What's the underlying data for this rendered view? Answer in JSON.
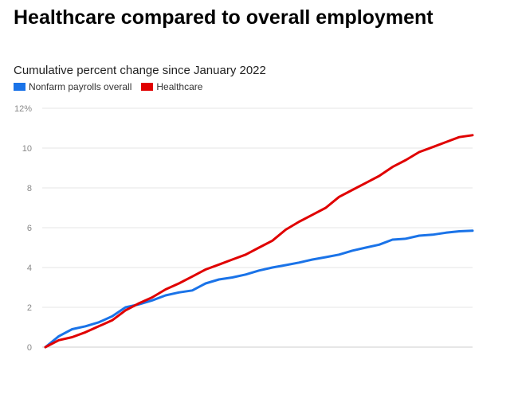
{
  "chart_data": {
    "type": "line",
    "title": "Healthcare compared to overall employment",
    "subtitle": "Cumulative percent change since January 2022",
    "ylim": [
      0,
      12
    ],
    "yticks": [
      "0",
      "2",
      "4",
      "6",
      "8",
      "10",
      "12%"
    ],
    "ytick_values": [
      0,
      2,
      4,
      6,
      8,
      10,
      12
    ],
    "grid": true,
    "legend_position": "top-left",
    "x": [
      0,
      1,
      2,
      3,
      4,
      5,
      6,
      7,
      8,
      9,
      10,
      11,
      12,
      13,
      14,
      15,
      16,
      17,
      18,
      19,
      20,
      21,
      22,
      23,
      24,
      25,
      26,
      27,
      28,
      29,
      30,
      31,
      32
    ],
    "series": [
      {
        "name": "Nonfarm payrolls overall",
        "color": "#1a73e8",
        "values": [
          0,
          0.55,
          0.9,
          1.05,
          1.25,
          1.55,
          2.0,
          2.15,
          2.35,
          2.6,
          2.75,
          2.85,
          3.2,
          3.4,
          3.5,
          3.65,
          3.85,
          4.0,
          4.12,
          4.25,
          4.4,
          4.52,
          4.65,
          4.85,
          5.0,
          5.15,
          5.4,
          5.45,
          5.6,
          5.65,
          5.75,
          5.82,
          5.85
        ]
      },
      {
        "name": "Healthcare",
        "color": "#e00000",
        "values": [
          0,
          0.35,
          0.5,
          0.75,
          1.05,
          1.35,
          1.85,
          2.2,
          2.5,
          2.9,
          3.2,
          3.55,
          3.9,
          4.15,
          4.4,
          4.65,
          5.0,
          5.35,
          5.9,
          6.3,
          6.65,
          7.0,
          7.55,
          7.9,
          8.25,
          8.6,
          9.05,
          9.4,
          9.8,
          10.05,
          10.3,
          10.55,
          10.65
        ]
      }
    ]
  }
}
